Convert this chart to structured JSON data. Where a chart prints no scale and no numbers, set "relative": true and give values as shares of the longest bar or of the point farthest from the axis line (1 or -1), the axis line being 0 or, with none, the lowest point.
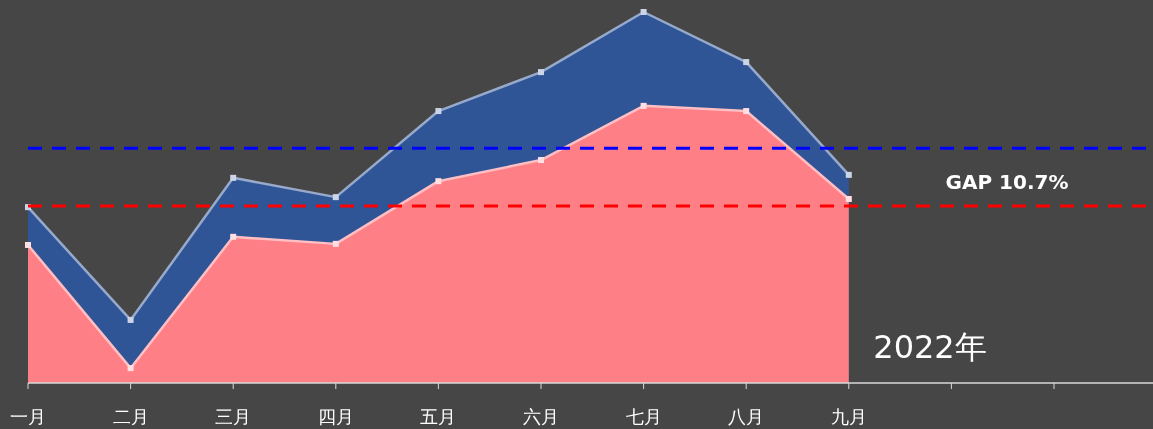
{
  "chart_data": {
    "type": "area",
    "relative": true,
    "marker": "square",
    "categories": [
      "一月",
      "二月",
      "三月",
      "四月",
      "五月",
      "六月",
      "七月",
      "八月",
      "九月",
      null,
      null,
      null
    ],
    "series": [
      {
        "color": "#2f5597",
        "values": [
          0.474,
          0.17,
          0.553,
          0.501,
          0.733,
          0.838,
          1,
          0.865,
          0.561,
          null,
          null,
          null
        ]
      },
      {
        "color": "#ff7f86",
        "values": [
          0.372,
          0.04,
          0.394,
          0.375,
          0.544,
          0.601,
          0.747,
          0.733,
          0.496,
          null,
          null,
          null
        ]
      }
    ],
    "ref_lines": [
      {
        "axis": "y",
        "value": 0.633,
        "color": "#0000ff",
        "line_style": "dashed"
      },
      {
        "axis": "y",
        "value": 0.477,
        "color": "#ff0000",
        "line_style": "dashed"
      }
    ],
    "annotations": [
      "GAP 10.7%",
      "2022年"
    ]
  }
}
